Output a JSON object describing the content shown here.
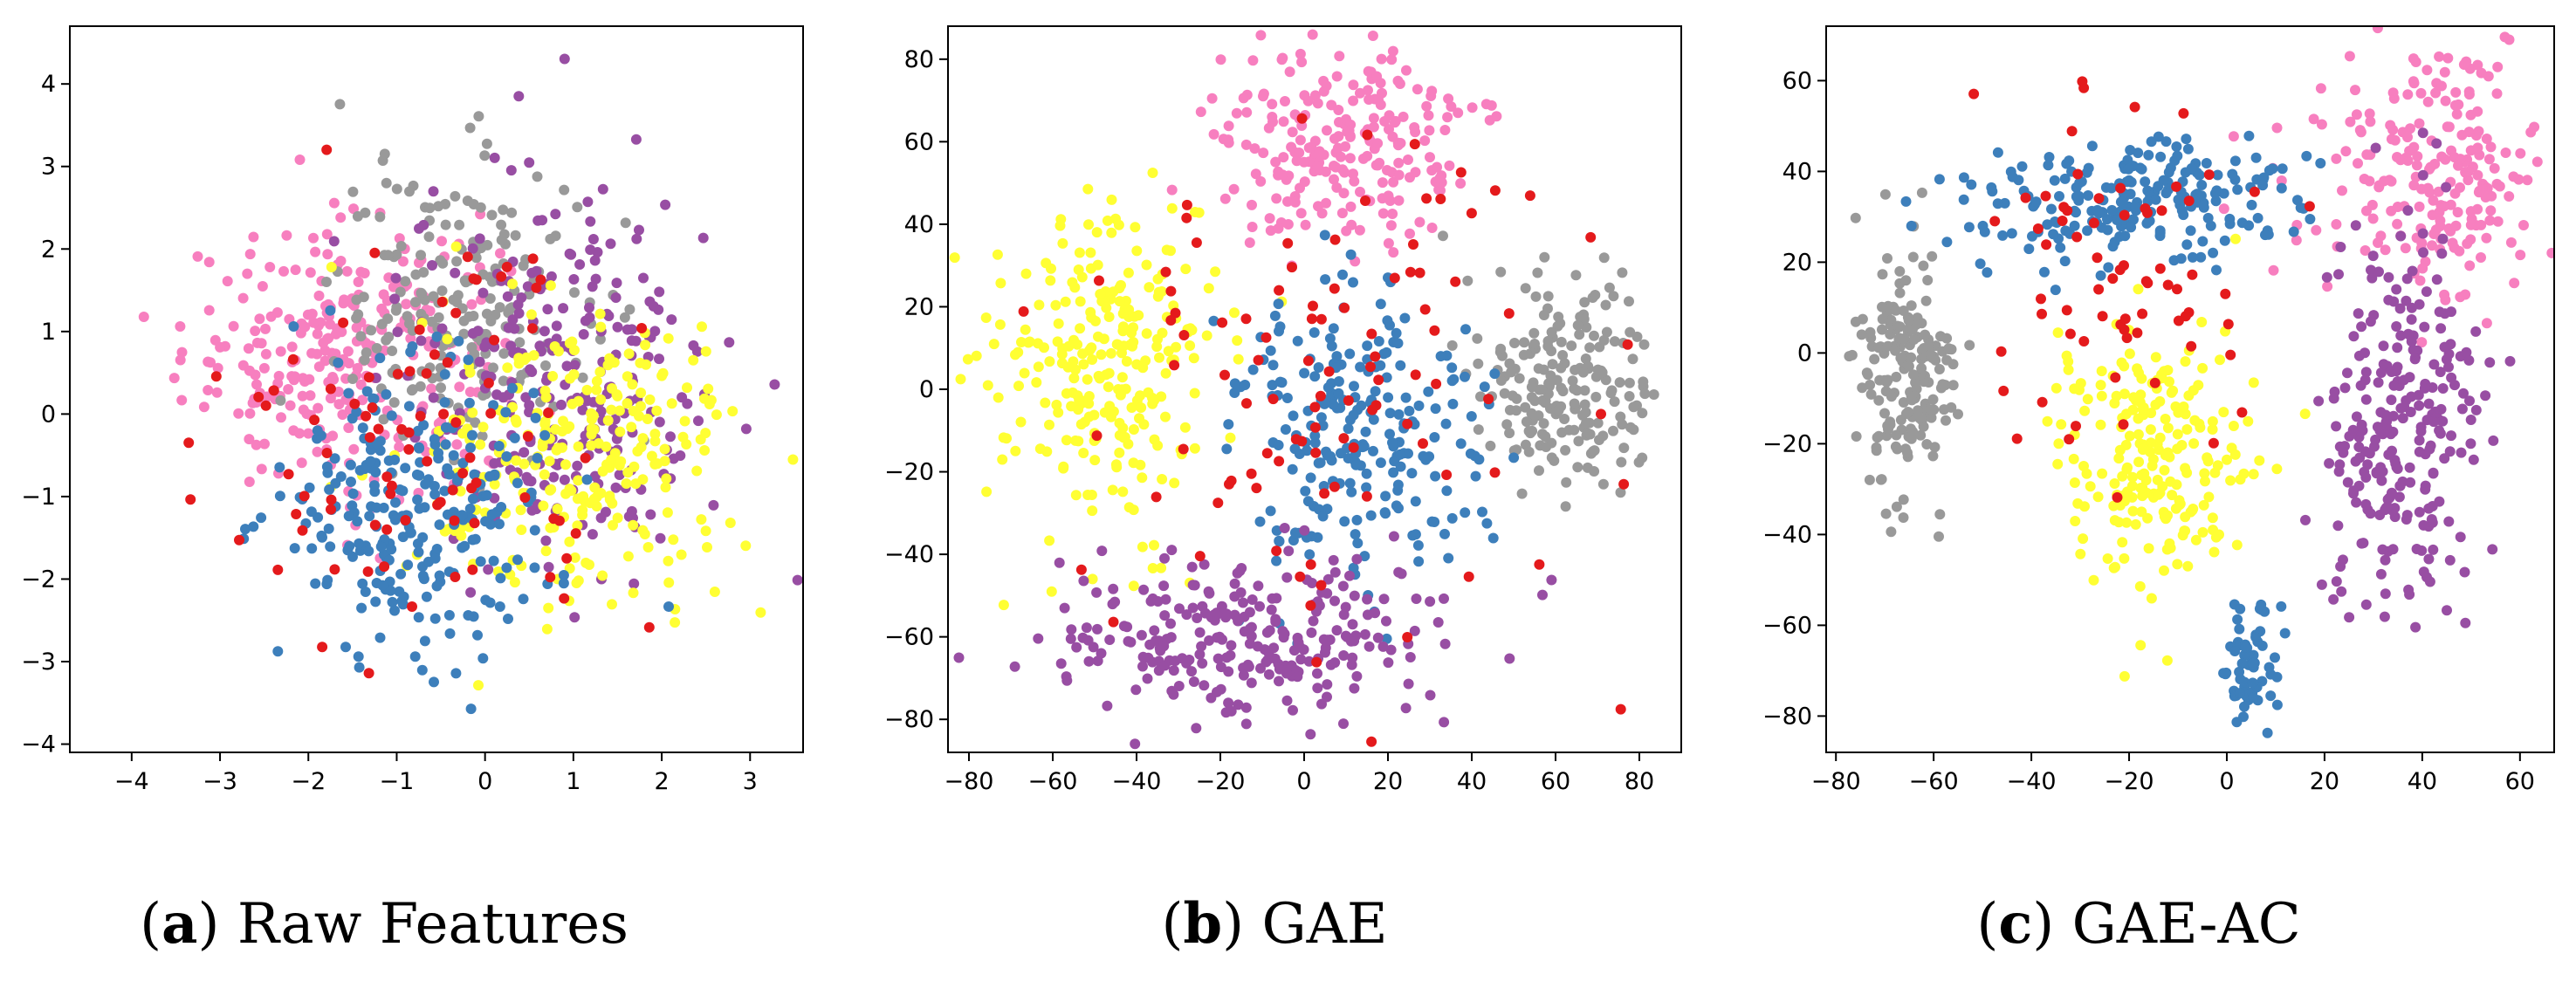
{
  "colors": {
    "blue": "#3d7fbb",
    "red": "#e41a1c",
    "pink": "#f77fbf",
    "gray": "#999999",
    "purple": "#984ea3",
    "yellow": "#ffff33"
  },
  "chart_data": [
    {
      "type": "scatter",
      "caption_letter": "a",
      "caption_text": "Raw Features",
      "xlim": [
        -4.7,
        3.6
      ],
      "ylim": [
        -4.1,
        4.7
      ],
      "xticks": [
        -4,
        -3,
        -2,
        -1,
        0,
        1,
        2,
        3
      ],
      "yticks": [
        -4,
        -3,
        -2,
        -1,
        0,
        1,
        2,
        3,
        4
      ],
      "xtick_labels": [
        "−4",
        "−3",
        "−2",
        "−1",
        "0",
        "1",
        "2",
        "3"
      ],
      "ytick_labels": [
        "−4",
        "−3",
        "−2",
        "−1",
        "0",
        "1",
        "2",
        "3",
        "4"
      ],
      "clusters": [
        {
          "color": "pink",
          "cx": -1.6,
          "cy": 0.7,
          "sx": 0.9,
          "sy": 0.8,
          "n": 280
        },
        {
          "color": "gray",
          "cx": -0.3,
          "cy": 1.3,
          "sx": 0.7,
          "sy": 0.9,
          "n": 200
        },
        {
          "color": "purple",
          "cx": 0.9,
          "cy": 0.5,
          "sx": 0.9,
          "sy": 1.2,
          "n": 260
        },
        {
          "color": "yellow",
          "cx": 1.1,
          "cy": -0.6,
          "sx": 0.9,
          "sy": 0.9,
          "n": 260
        },
        {
          "color": "blue",
          "cx": -0.8,
          "cy": -1.1,
          "sx": 0.8,
          "sy": 0.9,
          "n": 260
        },
        {
          "color": "red",
          "cx": -0.6,
          "cy": -0.4,
          "sx": 1.1,
          "sy": 1.1,
          "n": 90
        }
      ]
    },
    {
      "type": "scatter",
      "caption_letter": "b",
      "caption_text": "GAE",
      "xlim": [
        -85,
        90
      ],
      "ylim": [
        -88,
        88
      ],
      "xticks": [
        -80,
        -60,
        -40,
        -20,
        0,
        20,
        40,
        60,
        80
      ],
      "yticks": [
        -80,
        -60,
        -40,
        -20,
        0,
        20,
        40,
        60,
        80
      ],
      "xtick_labels": [
        "−80",
        "−60",
        "−40",
        "−20",
        "0",
        "20",
        "40",
        "60",
        "80"
      ],
      "ytick_labels": [
        "−80",
        "−60",
        "−40",
        "−20",
        "0",
        "20",
        "40",
        "60",
        "80"
      ],
      "clusters": [
        {
          "color": "pink",
          "cx": 10,
          "cy": 58,
          "sx": 15,
          "sy": 12,
          "n": 230
        },
        {
          "color": "yellow",
          "cx": -48,
          "cy": 5,
          "sx": 13,
          "sy": 20,
          "n": 260
        },
        {
          "color": "gray",
          "cx": 62,
          "cy": 0,
          "sx": 11,
          "sy": 13,
          "n": 200
        },
        {
          "color": "blue",
          "cx": 12,
          "cy": -10,
          "sx": 16,
          "sy": 18,
          "n": 240
        },
        {
          "color": "purple",
          "cx": -15,
          "cy": -60,
          "sx": 26,
          "sy": 10,
          "n": 260
        },
        {
          "color": "red",
          "cx": 8,
          "cy": 5,
          "sx": 32,
          "sy": 35,
          "n": 100
        }
      ]
    },
    {
      "type": "scatter",
      "caption_letter": "c",
      "caption_text": "GAE-AC",
      "xlim": [
        -82,
        67
      ],
      "ylim": [
        -88,
        72
      ],
      "xticks": [
        -80,
        -60,
        -40,
        -20,
        0,
        20,
        40,
        60
      ],
      "yticks": [
        -80,
        -60,
        -40,
        -20,
        0,
        20,
        40,
        60
      ],
      "xtick_labels": [
        "−80",
        "−60",
        "−40",
        "−20",
        "0",
        "20",
        "40",
        "60"
      ],
      "ytick_labels": [
        "−80",
        "−60",
        "−40",
        "−20",
        "0",
        "20",
        "40",
        "60"
      ],
      "clusters": [
        {
          "color": "pink",
          "cx": 42,
          "cy": 37,
          "sx": 12,
          "sy": 14,
          "n": 220
        },
        {
          "color": "gray",
          "cx": -65,
          "cy": -5,
          "sx": 5,
          "sy": 15,
          "n": 180
        },
        {
          "color": "blue",
          "cx": -20,
          "cy": 33,
          "sx": 18,
          "sy": 7,
          "n": 220
        },
        {
          "color": "yellow",
          "cx": -15,
          "cy": -22,
          "sx": 9,
          "sy": 15,
          "n": 220
        },
        {
          "color": "purple",
          "cx": 36,
          "cy": -15,
          "sx": 8,
          "sy": 22,
          "n": 260
        },
        {
          "color": "blue",
          "cx": 5,
          "cy": -68,
          "sx": 3,
          "sy": 7,
          "n": 60
        },
        {
          "color": "red",
          "cx": -20,
          "cy": 22,
          "sx": 15,
          "sy": 20,
          "n": 70
        }
      ]
    }
  ]
}
